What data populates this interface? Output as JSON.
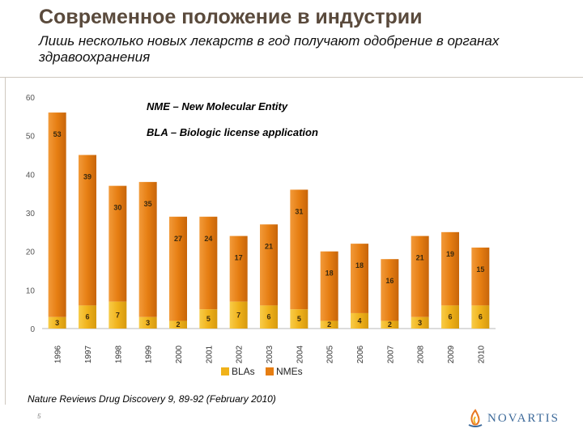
{
  "header": {
    "title": "Современное положение в индустрии",
    "subtitle": "Лишь несколько новых лекарств в год получают одобрение в органах здравоохранения"
  },
  "notes": {
    "nme": "NME – New Molecular Entity",
    "bla": "BLA – Biologic license application"
  },
  "source": "Nature Reviews Drug Discovery 9, 89-92 (February 2010)",
  "page_number": "5",
  "brand": {
    "name": "NOVARTIS",
    "icon": "novartis-flame-icon",
    "color": "#3d6a9a"
  },
  "colors": {
    "blas": "#f0b21a",
    "nmes": "#e67e12"
  },
  "chart_data": {
    "type": "bar",
    "stacked": true,
    "categories": [
      "1996",
      "1997",
      "1998",
      "1999",
      "2000",
      "2001",
      "2002",
      "2003",
      "2004",
      "2005",
      "2006",
      "2007",
      "2008",
      "2009",
      "2010"
    ],
    "series": [
      {
        "name": "BLAs",
        "values": [
          3,
          6,
          7,
          3,
          2,
          5,
          7,
          6,
          5,
          2,
          4,
          2,
          3,
          6,
          6
        ]
      },
      {
        "name": "NMEs",
        "values": [
          53,
          39,
          30,
          35,
          27,
          24,
          17,
          21,
          31,
          18,
          18,
          16,
          21,
          19,
          15
        ]
      }
    ],
    "ylim": [
      0,
      60
    ],
    "yticks": [
      0,
      10,
      20,
      30,
      40,
      50,
      60
    ],
    "title": "",
    "xlabel": "",
    "ylabel": "",
    "legend_position": "bottom"
  }
}
